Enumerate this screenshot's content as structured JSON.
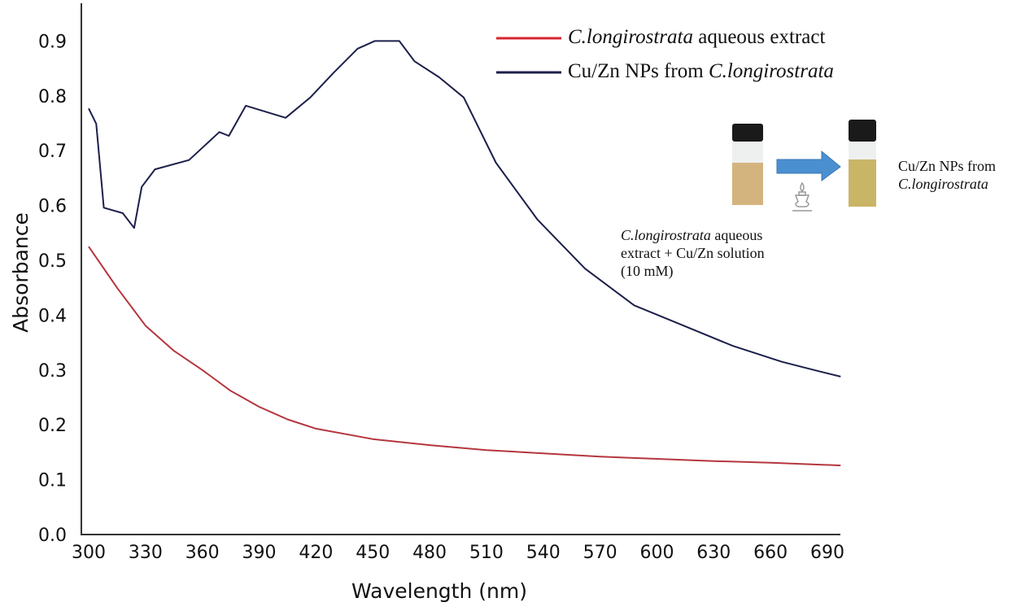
{
  "chart_data": {
    "type": "line",
    "title": "",
    "xlabel": "Wavelength (nm)",
    "ylabel": "Absorbance",
    "xlim": [
      300,
      697
    ],
    "ylim": [
      0,
      0.9
    ],
    "xticks": [
      300,
      330,
      360,
      390,
      420,
      450,
      480,
      510,
      540,
      570,
      600,
      630,
      660,
      690
    ],
    "yticks": [
      "0.0",
      "0.1",
      "0.2",
      "0.3",
      "0.4",
      "0.5",
      "0.6",
      "0.7",
      "0.8",
      "0.9"
    ],
    "grid": false,
    "legend_position": "top-right",
    "series": [
      {
        "name": "C.longirostrata aqueous extract",
        "name_italic": "C.longirostrata",
        "name_rest": " aqueous extract",
        "color": "#b5363f",
        "x": [
          300,
          315,
          330,
          345,
          360,
          375,
          390,
          405,
          420,
          450,
          480,
          510,
          540,
          570,
          600,
          630,
          660,
          697
        ],
        "y": [
          0.525,
          0.45,
          0.381,
          0.335,
          0.3,
          0.262,
          0.233,
          0.21,
          0.193,
          0.174,
          0.163,
          0.154,
          0.148,
          0.142,
          0.138,
          0.134,
          0.131,
          0.126
        ]
      },
      {
        "name": "Cu/Zn NPs from C.longirostrata",
        "name_rest": "Cu/Zn NPs from ",
        "name_italic": "C.longirostrata",
        "color": "#1c1f4a",
        "x": [
          300,
          304,
          308,
          318,
          324,
          328,
          335,
          353,
          369,
          374,
          383,
          404,
          417,
          429,
          442,
          451,
          464,
          472,
          485,
          498,
          515,
          537,
          562,
          588,
          614,
          640,
          666,
          683,
          697
        ],
        "y": [
          0.777,
          0.749,
          0.596,
          0.586,
          0.559,
          0.634,
          0.666,
          0.683,
          0.734,
          0.727,
          0.782,
          0.76,
          0.797,
          0.841,
          0.886,
          0.9,
          0.9,
          0.863,
          0.834,
          0.797,
          0.678,
          0.574,
          0.485,
          0.418,
          0.381,
          0.344,
          0.315,
          0.3,
          0.288
        ]
      }
    ]
  },
  "inset": {
    "left_caption_italic": "C.longirostrata",
    "left_caption_1": " aqueous",
    "left_caption_2": "extract + Cu/Zn  solution",
    "left_caption_3": "(10 mM)",
    "right_caption_1": "Cu/Zn  NPs from",
    "right_caption_italic": "C.longirostrata",
    "arrow_color": "#4a8fd0"
  }
}
